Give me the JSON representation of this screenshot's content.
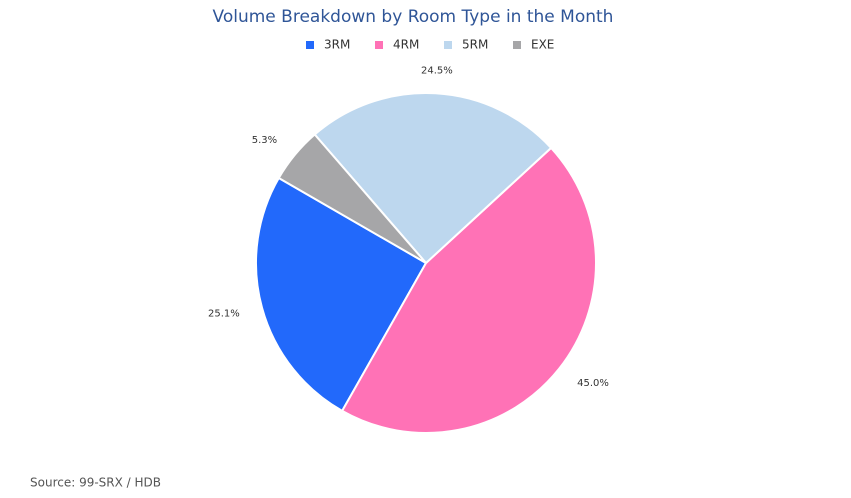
{
  "chart_data": {
    "type": "pie",
    "title": "Volume Breakdown by Room Type in the Month",
    "categories": [
      "3RM",
      "4RM",
      "5RM",
      "EXE"
    ],
    "values": [
      25.1,
      45.0,
      24.5,
      5.3
    ],
    "value_labels": [
      "25.1%",
      "45.0%",
      "24.5%",
      "5.3%"
    ],
    "colors": [
      "#2269fb",
      "#ff72b6",
      "#bdd7ee",
      "#a6a6a8"
    ],
    "start_angle": 300,
    "direction": "counterclockwise",
    "legend": "top",
    "source": "Source: 99-SRX / HDB"
  }
}
